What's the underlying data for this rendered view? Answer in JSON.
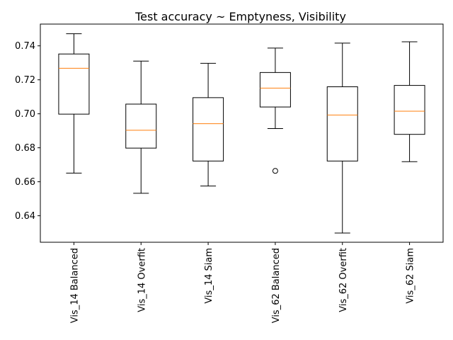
{
  "chart_data": {
    "type": "boxplot",
    "title": "Test accuracy ~ Emptyness, Visibility",
    "xlabel": "",
    "ylabel": "",
    "ylim": [
      0.6244,
      0.7528
    ],
    "yticks": [
      0.64,
      0.66,
      0.68,
      0.7,
      0.72,
      0.74
    ],
    "ytick_labels": [
      "0.64",
      "0.66",
      "0.68",
      "0.70",
      "0.72",
      "0.74"
    ],
    "categories": [
      "Vis_14 Balanced",
      "Vis_14 Overfit",
      "Vis_14 Siam",
      "Vis_62 Balanced",
      "Vis_62 Overfit",
      "Vis_62 Siam"
    ],
    "boxes": [
      {
        "whisker_low": 0.6651,
        "q1": 0.6998,
        "median": 0.7268,
        "q3": 0.7352,
        "whisker_high": 0.7471,
        "outliers": []
      },
      {
        "whisker_low": 0.6532,
        "q1": 0.6798,
        "median": 0.6903,
        "q3": 0.7057,
        "whisker_high": 0.731,
        "outliers": []
      },
      {
        "whisker_low": 0.6575,
        "q1": 0.6722,
        "median": 0.6942,
        "q3": 0.7095,
        "whisker_high": 0.7297,
        "outliers": []
      },
      {
        "whisker_low": 0.6913,
        "q1": 0.704,
        "median": 0.7151,
        "q3": 0.7243,
        "whisker_high": 0.7387,
        "outliers": [
          0.6664
        ]
      },
      {
        "whisker_low": 0.6298,
        "q1": 0.6722,
        "median": 0.6993,
        "q3": 0.7159,
        "whisker_high": 0.7416,
        "outliers": []
      },
      {
        "whisker_low": 0.6718,
        "q1": 0.6879,
        "median": 0.7015,
        "q3": 0.7167,
        "whisker_high": 0.7424,
        "outliers": []
      }
    ],
    "colors": {
      "box": "#000000",
      "median": "#ff7f0e",
      "background": "#ffffff"
    },
    "grid": false,
    "legend": "none"
  }
}
